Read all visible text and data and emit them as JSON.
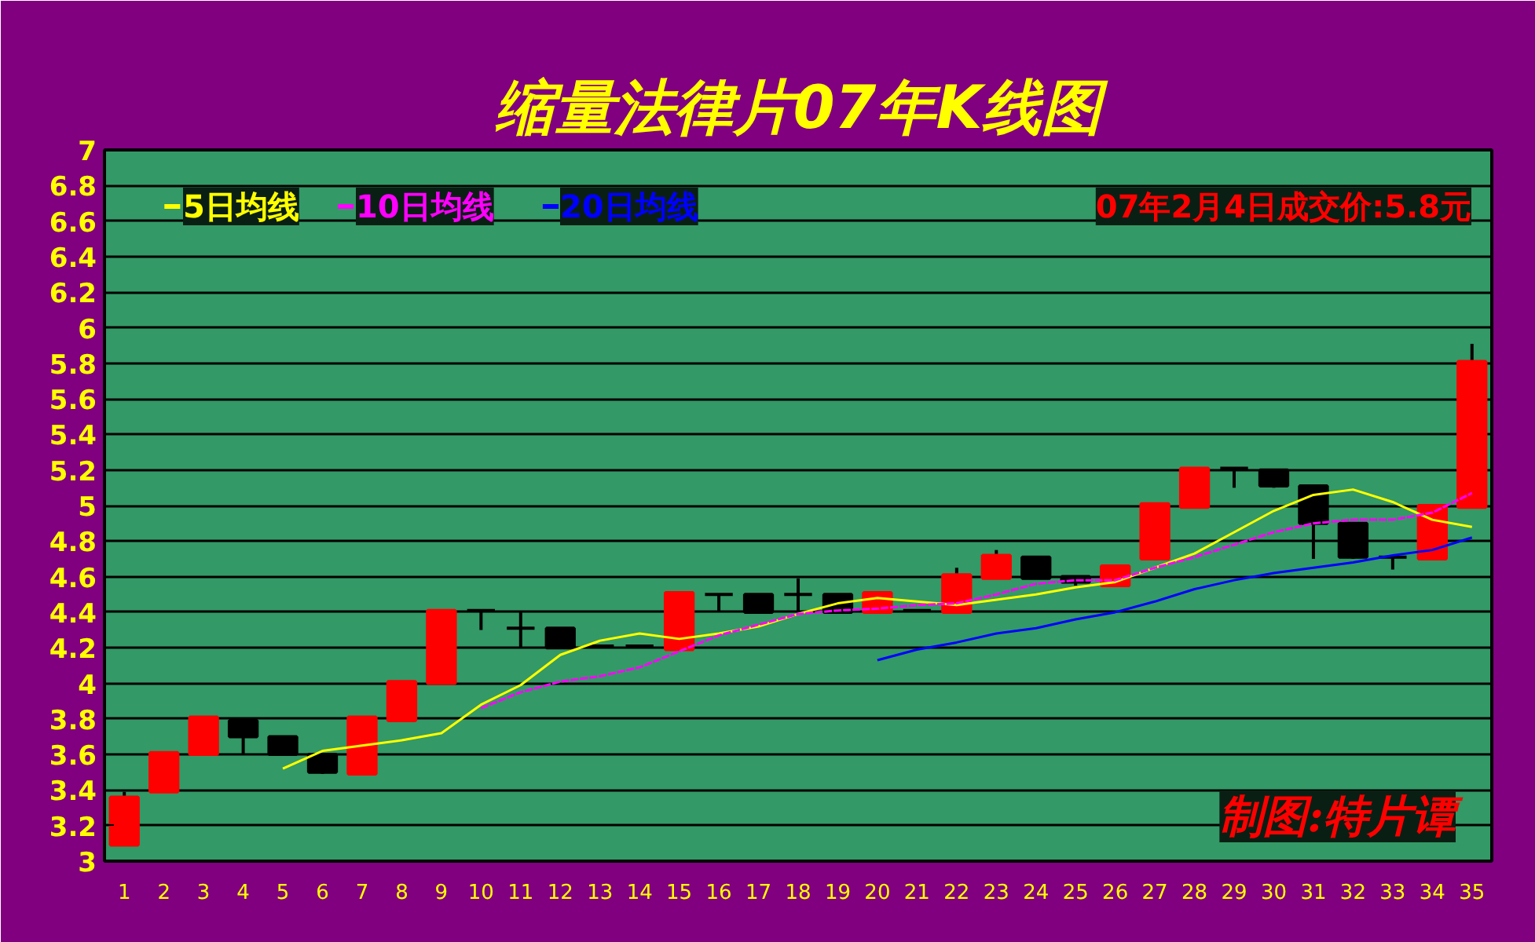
{
  "chart_data": {
    "type": "candlestick",
    "title": "缩量法律片07年K线图",
    "x": [
      1,
      2,
      3,
      4,
      5,
      6,
      7,
      8,
      9,
      10,
      11,
      12,
      13,
      14,
      15,
      16,
      17,
      18,
      19,
      20,
      21,
      22,
      23,
      24,
      25,
      26,
      27,
      28,
      29,
      30,
      31,
      32,
      33,
      34,
      35
    ],
    "ohlc": [
      [
        3.09,
        3.39,
        3.09,
        3.36
      ],
      [
        3.39,
        3.61,
        3.39,
        3.61
      ],
      [
        3.6,
        3.81,
        3.6,
        3.81
      ],
      [
        3.79,
        3.79,
        3.6,
        3.7
      ],
      [
        3.7,
        3.7,
        3.6,
        3.6
      ],
      [
        3.6,
        3.6,
        3.49,
        3.5
      ],
      [
        3.49,
        3.81,
        3.49,
        3.81
      ],
      [
        3.79,
        4.01,
        3.79,
        4.01
      ],
      [
        4.0,
        4.41,
        4.0,
        4.41
      ],
      [
        4.41,
        4.41,
        4.3,
        4.41
      ],
      [
        4.31,
        4.4,
        4.2,
        4.31
      ],
      [
        4.31,
        4.31,
        4.2,
        4.2
      ],
      [
        4.21,
        4.21,
        4.21,
        4.21
      ],
      [
        4.21,
        4.21,
        4.21,
        4.21
      ],
      [
        4.19,
        4.51,
        4.19,
        4.51
      ],
      [
        4.5,
        4.5,
        4.4,
        4.5
      ],
      [
        4.5,
        4.5,
        4.4,
        4.4
      ],
      [
        4.5,
        4.59,
        4.4,
        4.5
      ],
      [
        4.5,
        4.5,
        4.4,
        4.4
      ],
      [
        4.4,
        4.51,
        4.4,
        4.51
      ],
      [
        4.41,
        4.41,
        4.41,
        4.41
      ],
      [
        4.4,
        4.65,
        4.4,
        4.61
      ],
      [
        4.59,
        4.75,
        4.59,
        4.72
      ],
      [
        4.71,
        4.71,
        4.59,
        4.59
      ],
      [
        4.6,
        4.6,
        4.55,
        4.57
      ],
      [
        4.55,
        4.66,
        4.55,
        4.66
      ],
      [
        4.7,
        5.01,
        4.7,
        5.01
      ],
      [
        4.99,
        5.21,
        4.99,
        5.21
      ],
      [
        5.21,
        5.21,
        5.1,
        5.21
      ],
      [
        5.2,
        5.2,
        5.1,
        5.11
      ],
      [
        5.11,
        5.11,
        4.7,
        4.9
      ],
      [
        4.9,
        4.9,
        4.7,
        4.71
      ],
      [
        4.71,
        4.71,
        4.64,
        4.71
      ],
      [
        4.7,
        5.0,
        4.7,
        5.0
      ],
      [
        4.99,
        5.91,
        4.99,
        5.81
      ]
    ],
    "colors": [
      "#ff0000",
      "#ff0000",
      "#ff0000",
      "#000000",
      "#000000",
      "#000000",
      "#ff0000",
      "#ff0000",
      "#ff0000",
      "#000000",
      "#000000",
      "#000000",
      "#000000",
      "#000000",
      "#ff0000",
      "#000000",
      "#000000",
      "#000000",
      "#000000",
      "#ff0000",
      "#000000",
      "#ff0000",
      "#ff0000",
      "#000000",
      "#000000",
      "#ff0000",
      "#ff0000",
      "#ff0000",
      "#000000",
      "#000000",
      "#000000",
      "#000000",
      "#000000",
      "#ff0000",
      "#ff0000"
    ],
    "series": [
      {
        "name": "5日均线",
        "type": "line",
        "color": "#ffff00",
        "x": [
          5,
          6,
          7,
          8,
          9,
          10,
          11,
          12,
          13,
          14,
          15,
          16,
          17,
          18,
          19,
          20,
          21,
          22,
          23,
          24,
          25,
          26,
          27,
          28,
          29,
          30,
          31,
          32,
          33,
          34,
          35
        ],
        "values": [
          3.52,
          3.62,
          3.65,
          3.68,
          3.72,
          3.88,
          3.99,
          4.16,
          4.24,
          4.28,
          4.25,
          4.28,
          4.32,
          4.39,
          4.45,
          4.48,
          4.46,
          4.44,
          4.47,
          4.5,
          4.54,
          4.57,
          4.65,
          4.73,
          4.85,
          4.97,
          5.06,
          5.09,
          5.02,
          4.92,
          4.88
        ]
      },
      {
        "name": "10日均线",
        "type": "line",
        "color": "#ff00ff",
        "line_style": "dashed",
        "x": [
          10,
          11,
          12,
          13,
          14,
          15,
          16,
          17,
          18,
          19,
          20,
          21,
          22,
          23,
          24,
          25,
          26,
          27,
          28,
          29,
          30,
          31,
          32,
          33,
          34,
          35
        ],
        "values": [
          3.86,
          3.95,
          4.01,
          4.04,
          4.09,
          4.18,
          4.27,
          4.33,
          4.39,
          4.41,
          4.42,
          4.44,
          4.45,
          4.5,
          4.56,
          4.58,
          4.58,
          4.65,
          4.71,
          4.78,
          4.85,
          4.9,
          4.92,
          4.92,
          4.96,
          5.07
        ]
      },
      {
        "name": "20日均线",
        "type": "line",
        "color": "#0000ff",
        "x": [
          20,
          21,
          22,
          23,
          24,
          25,
          26,
          27,
          28,
          29,
          30,
          31,
          32,
          33,
          34,
          35
        ],
        "values": [
          4.13,
          4.19,
          4.23,
          4.28,
          4.31,
          4.36,
          4.4,
          4.46,
          4.53,
          4.58,
          4.62,
          4.65,
          4.68,
          4.72,
          4.75,
          4.82
        ]
      }
    ],
    "xlim": [
      0.5,
      35.5
    ],
    "xticks": [
      1,
      2,
      3,
      4,
      5,
      6,
      7,
      8,
      9,
      10,
      11,
      12,
      13,
      14,
      15,
      16,
      17,
      18,
      19,
      20,
      21,
      22,
      23,
      24,
      25,
      26,
      27,
      28,
      29,
      30,
      31,
      32,
      33,
      34,
      35
    ],
    "ylim": [
      3,
      7
    ],
    "yticks": [
      3,
      3.2,
      3.4,
      3.6,
      3.8,
      4,
      4.2,
      4.4,
      4.6,
      4.8,
      5,
      5.2,
      5.4,
      5.6,
      5.8,
      6,
      6.2,
      6.4,
      6.6,
      6.8,
      7
    ],
    "grid": "y",
    "legend": "top left",
    "annotations": [
      "07年2月4日成交价:5.8元",
      "制图:特片谭"
    ]
  }
}
